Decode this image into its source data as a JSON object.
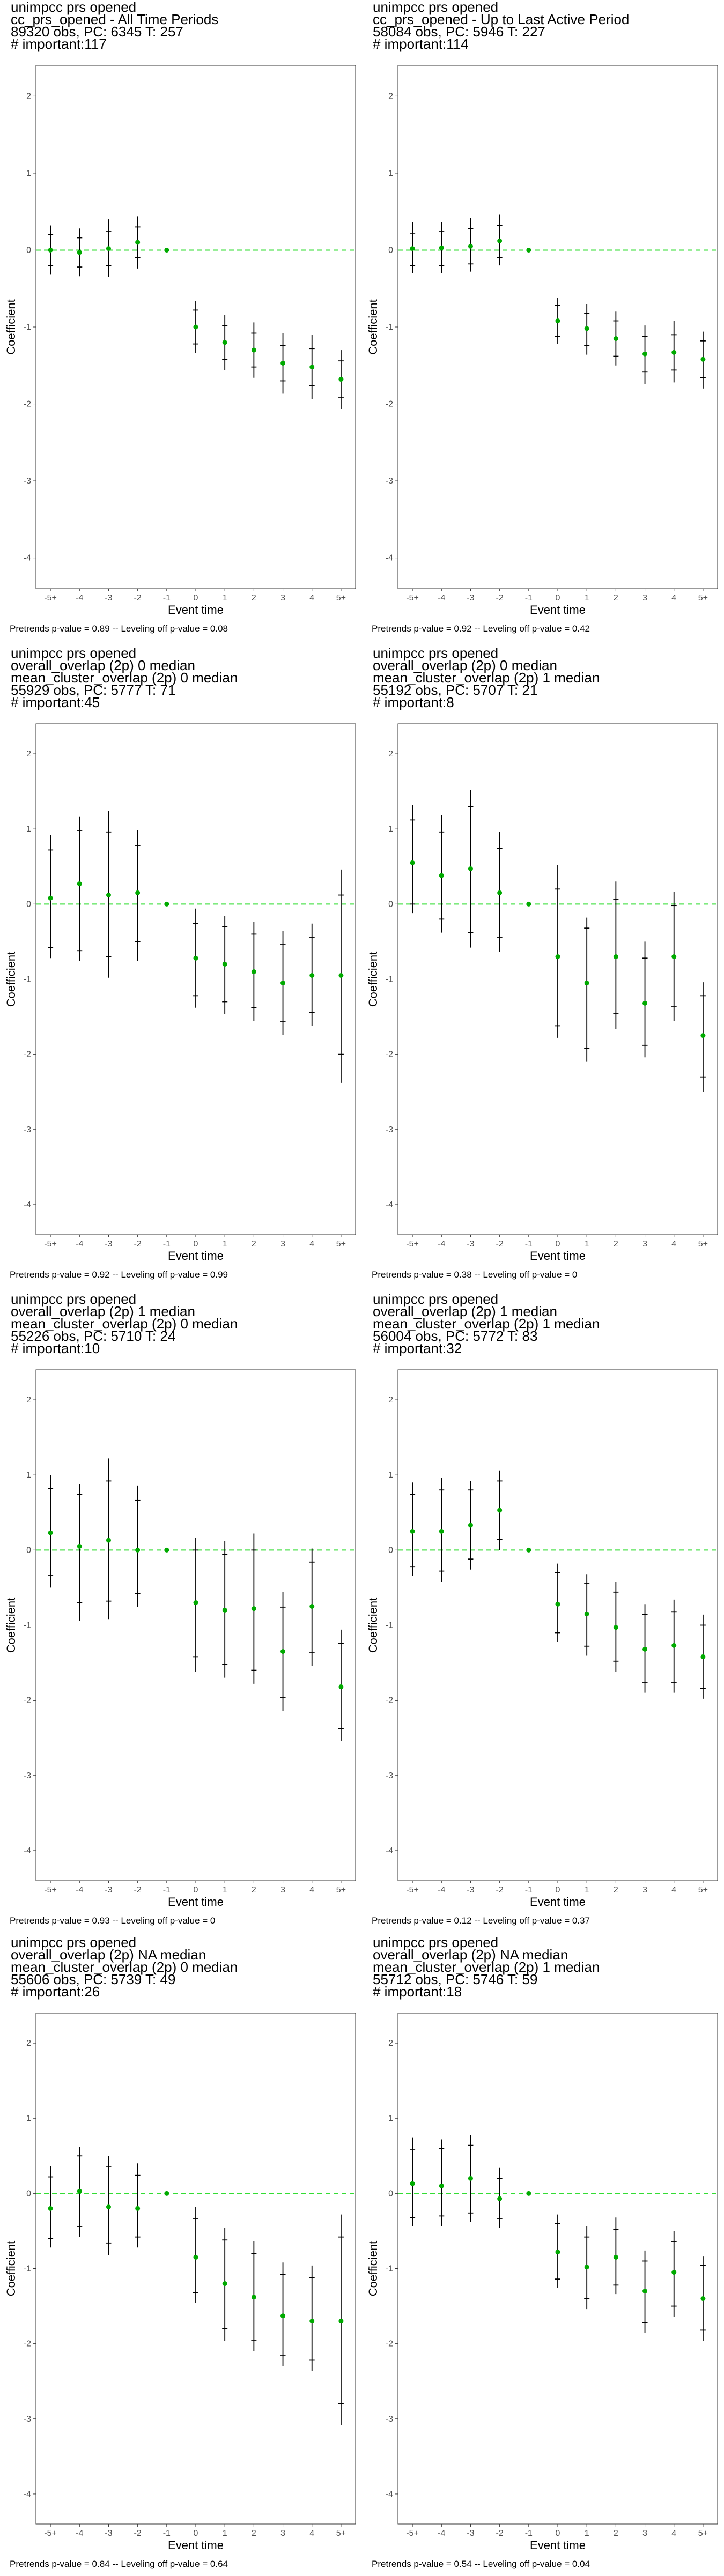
{
  "chart_data": [
    {
      "type": "scatter",
      "title_lines": [
        " unimpcc prs opened",
        "cc_prs_opened - All Time Periods",
        "89320 obs, PC: 6345 T: 257",
        "# important:117"
      ],
      "xlabel": "Event time",
      "ylabel": "Coefficient",
      "x": [
        "-5+",
        "-4",
        "-3",
        "-2",
        "-1",
        "0",
        "1",
        "2",
        "3",
        "4",
        "5+"
      ],
      "y_ticks": [
        2,
        1,
        0,
        -1,
        -2,
        -3,
        -4
      ],
      "ylim": [
        -4.4,
        2.4
      ],
      "grid": false,
      "reference_line": 0,
      "series": [
        {
          "y": [
            0.0,
            -0.03,
            0.02,
            0.1,
            0.0,
            -1.0,
            -1.2,
            -1.3,
            -1.47,
            -1.52,
            -1.68
          ]
        }
      ],
      "ci_inner": [
        [
          -0.2,
          0.2
        ],
        [
          -0.22,
          0.16
        ],
        [
          -0.2,
          0.24
        ],
        [
          -0.1,
          0.3
        ],
        null,
        [
          -1.22,
          -0.78
        ],
        [
          -1.42,
          -0.98
        ],
        [
          -1.52,
          -1.08
        ],
        [
          -1.7,
          -1.24
        ],
        [
          -1.76,
          -1.28
        ],
        [
          -1.92,
          -1.44
        ]
      ],
      "ci_outer": [
        [
          -0.32,
          0.32
        ],
        [
          -0.34,
          0.28
        ],
        [
          -0.35,
          0.4
        ],
        [
          -0.24,
          0.44
        ],
        null,
        [
          -1.34,
          -0.66
        ],
        [
          -1.56,
          -0.84
        ],
        [
          -1.66,
          -0.94
        ],
        [
          -1.86,
          -1.08
        ],
        [
          -1.94,
          -1.1
        ],
        [
          -2.06,
          -1.3
        ]
      ],
      "footnote": "Pretrends p-value = 0.89 -- Leveling off p-value = 0.08"
    },
    {
      "type": "scatter",
      "title_lines": [
        " unimpcc prs opened",
        "cc_prs_opened - Up to Last Active Period",
        "58084 obs, PC: 5946 T: 227",
        "# important:114"
      ],
      "xlabel": "Event time",
      "ylabel": "Coefficient",
      "x": [
        "-5+",
        "-4",
        "-3",
        "-2",
        "-1",
        "0",
        "1",
        "2",
        "3",
        "4",
        "5+"
      ],
      "y_ticks": [
        2,
        1,
        0,
        -1,
        -2,
        -3,
        -4
      ],
      "ylim": [
        -4.4,
        2.4
      ],
      "grid": false,
      "reference_line": 0,
      "series": [
        {
          "y": [
            0.02,
            0.03,
            0.05,
            0.12,
            0.0,
            -0.92,
            -1.02,
            -1.15,
            -1.35,
            -1.33,
            -1.42
          ]
        }
      ],
      "ci_inner": [
        [
          -0.2,
          0.22
        ],
        [
          -0.2,
          0.24
        ],
        [
          -0.18,
          0.28
        ],
        [
          -0.1,
          0.32
        ],
        null,
        [
          -1.12,
          -0.72
        ],
        [
          -1.24,
          -0.82
        ],
        [
          -1.38,
          -0.92
        ],
        [
          -1.58,
          -1.12
        ],
        [
          -1.56,
          -1.1
        ],
        [
          -1.66,
          -1.18
        ]
      ],
      "ci_outer": [
        [
          -0.3,
          0.36
        ],
        [
          -0.3,
          0.36
        ],
        [
          -0.28,
          0.42
        ],
        [
          -0.2,
          0.46
        ],
        null,
        [
          -1.22,
          -0.62
        ],
        [
          -1.36,
          -0.7
        ],
        [
          -1.5,
          -0.8
        ],
        [
          -1.74,
          -0.98
        ],
        [
          -1.72,
          -0.92
        ],
        [
          -1.8,
          -1.06
        ]
      ],
      "footnote": "Pretrends p-value = 0.92 -- Leveling off p-value = 0.42"
    },
    {
      "type": "scatter",
      "title_lines": [
        " unimpcc prs opened",
        "overall_overlap (2p) 0 median",
        "mean_cluster_overlap (2p) 0 median",
        "55929 obs, PC: 5777 T: 71",
        "# important:45"
      ],
      "xlabel": "Event time",
      "ylabel": "Coefficient",
      "x": [
        "-5+",
        "-4",
        "-3",
        "-2",
        "-1",
        "0",
        "1",
        "2",
        "3",
        "4",
        "5+"
      ],
      "y_ticks": [
        2,
        1,
        0,
        -1,
        -2,
        -3,
        -4
      ],
      "ylim": [
        -4.4,
        2.4
      ],
      "grid": false,
      "reference_line": 0,
      "series": [
        {
          "y": [
            0.08,
            0.27,
            0.12,
            0.15,
            0.0,
            -0.72,
            -0.8,
            -0.9,
            -1.05,
            -0.95,
            -0.95
          ]
        }
      ],
      "ci_inner": [
        [
          -0.58,
          0.72
        ],
        [
          -0.62,
          0.98
        ],
        [
          -0.7,
          0.96
        ],
        [
          -0.5,
          0.78
        ],
        null,
        [
          -1.22,
          -0.26
        ],
        [
          -1.3,
          -0.3
        ],
        [
          -1.38,
          -0.4
        ],
        [
          -1.56,
          -0.54
        ],
        [
          -1.44,
          -0.44
        ],
        [
          -2.0,
          0.12
        ]
      ],
      "ci_outer": [
        [
          -0.72,
          0.92
        ],
        [
          -0.76,
          1.16
        ],
        [
          -0.98,
          1.24
        ],
        [
          -0.76,
          0.98
        ],
        null,
        [
          -1.38,
          -0.06
        ],
        [
          -1.46,
          -0.16
        ],
        [
          -1.56,
          -0.24
        ],
        [
          -1.74,
          -0.36
        ],
        [
          -1.62,
          -0.26
        ],
        [
          -2.38,
          0.46
        ]
      ],
      "footnote": "Pretrends p-value = 0.92 -- Leveling off p-value = 0.99"
    },
    {
      "type": "scatter",
      "title_lines": [
        " unimpcc prs opened",
        "overall_overlap (2p) 0 median",
        "mean_cluster_overlap (2p) 1 median",
        "55192 obs, PC: 5707 T: 21",
        "# important:8"
      ],
      "xlabel": "Event time",
      "ylabel": "Coefficient",
      "x": [
        "-5+",
        "-4",
        "-3",
        "-2",
        "-1",
        "0",
        "1",
        "2",
        "3",
        "4",
        "5+"
      ],
      "y_ticks": [
        2,
        1,
        0,
        -1,
        -2,
        -3,
        -4
      ],
      "ylim": [
        -4.4,
        2.4
      ],
      "grid": false,
      "reference_line": 0,
      "series": [
        {
          "y": [
            0.55,
            0.38,
            0.47,
            0.15,
            0.0,
            -0.7,
            -1.05,
            -0.7,
            -1.32,
            -0.7,
            -1.75
          ]
        }
      ],
      "ci_inner": [
        [
          0.0,
          1.12
        ],
        [
          -0.2,
          0.96
        ],
        [
          -0.38,
          1.3
        ],
        [
          -0.44,
          0.74
        ],
        null,
        [
          -1.62,
          0.2
        ],
        [
          -1.92,
          -0.32
        ],
        [
          -1.46,
          0.06
        ],
        [
          -1.88,
          -0.72
        ],
        [
          -1.36,
          -0.02
        ],
        [
          -2.3,
          -1.22
        ]
      ],
      "ci_outer": [
        [
          -0.12,
          1.32
        ],
        [
          -0.38,
          1.18
        ],
        [
          -0.58,
          1.52
        ],
        [
          -0.64,
          0.96
        ],
        null,
        [
          -1.78,
          0.52
        ],
        [
          -2.1,
          -0.18
        ],
        [
          -1.66,
          0.3
        ],
        [
          -2.04,
          -0.5
        ],
        [
          -1.56,
          0.16
        ],
        [
          -2.5,
          -1.04
        ]
      ],
      "footnote": "Pretrends p-value = 0.38 -- Leveling off p-value = 0"
    },
    {
      "type": "scatter",
      "title_lines": [
        " unimpcc prs opened",
        "overall_overlap (2p) 1 median",
        "mean_cluster_overlap (2p) 0 median",
        "55226 obs, PC: 5710 T: 24",
        "# important:10"
      ],
      "xlabel": "Event time",
      "ylabel": "Coefficient",
      "x": [
        "-5+",
        "-4",
        "-3",
        "-2",
        "-1",
        "0",
        "1",
        "2",
        "3",
        "4",
        "5+"
      ],
      "y_ticks": [
        2,
        1,
        0,
        -1,
        -2,
        -3,
        -4
      ],
      "ylim": [
        -4.4,
        2.4
      ],
      "grid": false,
      "reference_line": 0,
      "series": [
        {
          "y": [
            0.23,
            0.05,
            0.13,
            0.0,
            0.0,
            -0.7,
            -0.8,
            -0.78,
            -1.35,
            -0.75,
            -1.82
          ]
        }
      ],
      "ci_inner": [
        [
          -0.34,
          0.82
        ],
        [
          -0.7,
          0.74
        ],
        [
          -0.68,
          0.92
        ],
        [
          -0.58,
          0.66
        ],
        null,
        [
          -1.42,
          0.0
        ],
        [
          -1.52,
          -0.06
        ],
        [
          -1.6,
          0.0
        ],
        [
          -1.96,
          -0.76
        ],
        [
          -1.36,
          -0.16
        ],
        [
          -2.38,
          -1.24
        ]
      ],
      "ci_outer": [
        [
          -0.5,
          1.0
        ],
        [
          -0.94,
          0.88
        ],
        [
          -0.92,
          1.22
        ],
        [
          -0.76,
          0.86
        ],
        null,
        [
          -1.62,
          0.16
        ],
        [
          -1.7,
          0.12
        ],
        [
          -1.78,
          0.22
        ],
        [
          -2.14,
          -0.56
        ],
        [
          -1.54,
          0.02
        ],
        [
          -2.54,
          -1.06
        ]
      ],
      "footnote": "Pretrends p-value = 0.93 -- Leveling off p-value = 0"
    },
    {
      "type": "scatter",
      "title_lines": [
        " unimpcc prs opened",
        "overall_overlap (2p) 1 median",
        "mean_cluster_overlap (2p) 1 median",
        "56004 obs, PC: 5772 T: 83",
        "# important:32"
      ],
      "xlabel": "Event time",
      "ylabel": "Coefficient",
      "x": [
        "-5+",
        "-4",
        "-3",
        "-2",
        "-1",
        "0",
        "1",
        "2",
        "3",
        "4",
        "5+"
      ],
      "y_ticks": [
        2,
        1,
        0,
        -1,
        -2,
        -3,
        -4
      ],
      "ylim": [
        -4.4,
        2.4
      ],
      "grid": false,
      "reference_line": 0,
      "series": [
        {
          "y": [
            0.25,
            0.25,
            0.33,
            0.53,
            0.0,
            -0.72,
            -0.85,
            -1.03,
            -1.32,
            -1.27,
            -1.42
          ]
        }
      ],
      "ci_inner": [
        [
          -0.22,
          0.74
        ],
        [
          -0.28,
          0.8
        ],
        [
          -0.12,
          0.8
        ],
        [
          0.14,
          0.92
        ],
        null,
        [
          -1.1,
          -0.3
        ],
        [
          -1.28,
          -0.44
        ],
        [
          -1.48,
          -0.56
        ],
        [
          -1.76,
          -0.86
        ],
        [
          -1.76,
          -0.82
        ],
        [
          -1.84,
          -1.0
        ]
      ],
      "ci_outer": [
        [
          -0.34,
          0.9
        ],
        [
          -0.42,
          0.96
        ],
        [
          -0.26,
          0.92
        ],
        [
          0.0,
          1.06
        ],
        null,
        [
          -1.22,
          -0.18
        ],
        [
          -1.4,
          -0.32
        ],
        [
          -1.62,
          -0.42
        ],
        [
          -1.9,
          -0.72
        ],
        [
          -1.9,
          -0.66
        ],
        [
          -1.98,
          -0.86
        ]
      ],
      "footnote": "Pretrends p-value = 0.12 -- Leveling off p-value = 0.37"
    },
    {
      "type": "scatter",
      "title_lines": [
        " unimpcc prs opened",
        "overall_overlap (2p) NA median",
        "mean_cluster_overlap (2p) 0 median",
        "55606 obs, PC: 5739 T: 49",
        "# important:26"
      ],
      "xlabel": "Event time",
      "ylabel": "Coefficient",
      "x": [
        "-5+",
        "-4",
        "-3",
        "-2",
        "-1",
        "0",
        "1",
        "2",
        "3",
        "4",
        "5+"
      ],
      "y_ticks": [
        2,
        1,
        0,
        -1,
        -2,
        -3,
        -4
      ],
      "ylim": [
        -4.4,
        2.4
      ],
      "grid": false,
      "reference_line": 0,
      "series": [
        {
          "y": [
            -0.2,
            0.03,
            -0.18,
            -0.2,
            0.0,
            -0.85,
            -1.2,
            -1.38,
            -1.63,
            -1.7,
            -1.7
          ]
        }
      ],
      "ci_inner": [
        [
          -0.6,
          0.22
        ],
        [
          -0.44,
          0.5
        ],
        [
          -0.66,
          0.36
        ],
        [
          -0.58,
          0.24
        ],
        null,
        [
          -1.32,
          -0.34
        ],
        [
          -1.8,
          -0.62
        ],
        [
          -1.96,
          -0.8
        ],
        [
          -2.16,
          -1.08
        ],
        [
          -2.22,
          -1.12
        ],
        [
          -2.8,
          -0.58
        ]
      ],
      "ci_outer": [
        [
          -0.72,
          0.36
        ],
        [
          -0.58,
          0.62
        ],
        [
          -0.82,
          0.5
        ],
        [
          -0.72,
          0.4
        ],
        null,
        [
          -1.46,
          -0.18
        ],
        [
          -1.96,
          -0.46
        ],
        [
          -2.1,
          -0.64
        ],
        [
          -2.3,
          -0.92
        ],
        [
          -2.36,
          -0.96
        ],
        [
          -3.08,
          -0.28
        ]
      ],
      "footnote": "Pretrends p-value = 0.84 -- Leveling off p-value = 0.64"
    },
    {
      "type": "scatter",
      "title_lines": [
        " unimpcc prs opened",
        "overall_overlap (2p) NA median",
        "mean_cluster_overlap (2p) 1 median",
        "55712 obs, PC: 5746 T: 59",
        "# important:18"
      ],
      "xlabel": "Event time",
      "ylabel": "Coefficient",
      "x": [
        "-5+",
        "-4",
        "-3",
        "-2",
        "-1",
        "0",
        "1",
        "2",
        "3",
        "4",
        "5+"
      ],
      "y_ticks": [
        2,
        1,
        0,
        -1,
        -2,
        -3,
        -4
      ],
      "ylim": [
        -4.4,
        2.4
      ],
      "grid": false,
      "reference_line": 0,
      "series": [
        {
          "y": [
            0.13,
            0.1,
            0.2,
            -0.07,
            0.0,
            -0.78,
            -0.98,
            -0.85,
            -1.3,
            -1.05,
            -1.4
          ]
        }
      ],
      "ci_inner": [
        [
          -0.32,
          0.58
        ],
        [
          -0.3,
          0.6
        ],
        [
          -0.26,
          0.64
        ],
        [
          -0.34,
          0.2
        ],
        null,
        [
          -1.14,
          -0.4
        ],
        [
          -1.4,
          -0.58
        ],
        [
          -1.22,
          -0.48
        ],
        [
          -1.72,
          -0.9
        ],
        [
          -1.5,
          -0.64
        ],
        [
          -1.82,
          -0.96
        ]
      ],
      "ci_outer": [
        [
          -0.44,
          0.74
        ],
        [
          -0.44,
          0.72
        ],
        [
          -0.38,
          0.78
        ],
        [
          -0.46,
          0.34
        ],
        null,
        [
          -1.26,
          -0.28
        ],
        [
          -1.54,
          -0.44
        ],
        [
          -1.34,
          -0.32
        ],
        [
          -1.86,
          -0.76
        ],
        [
          -1.64,
          -0.5
        ],
        [
          -1.96,
          -0.84
        ]
      ],
      "footnote": "Pretrends p-value = 0.54 -- Leveling off p-value = 0.04"
    }
  ],
  "colors": {
    "point": "#00aa00",
    "reference_line": "#33dd33",
    "whisker": "#000000",
    "panel_border": "#333333",
    "tick_text": "#4d4d4d"
  }
}
